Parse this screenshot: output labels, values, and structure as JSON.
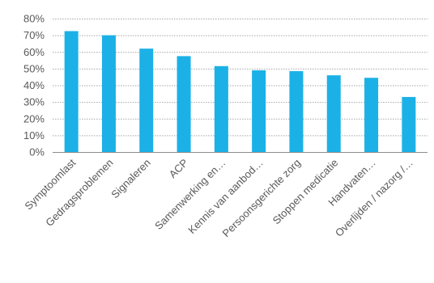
{
  "chart_data": {
    "type": "bar",
    "categories": [
      "Symptoomlast",
      "Gedragsproblemen",
      "Signaleren",
      "ACP",
      "Samenwerking en…",
      "Kennis van aanbod…",
      "Persoonsgerichte zorg",
      "Stoppen medicatie",
      "Handvaten…",
      "Overlijden / nazorg /…"
    ],
    "values": [
      72.5,
      70,
      62,
      57.5,
      51.5,
      49,
      48.5,
      46,
      44.5,
      33
    ],
    "y_ticks": [
      "0%",
      "10%",
      "20%",
      "30%",
      "40%",
      "50%",
      "60%",
      "70%",
      "80%"
    ],
    "ylim": [
      0,
      80
    ],
    "grid": true,
    "grid_style": "dotted",
    "bar_color": "#1bb1e7",
    "text_color": "#595959",
    "grid_color": "#a6a6a6",
    "axis_color": "#8c8c8c"
  }
}
